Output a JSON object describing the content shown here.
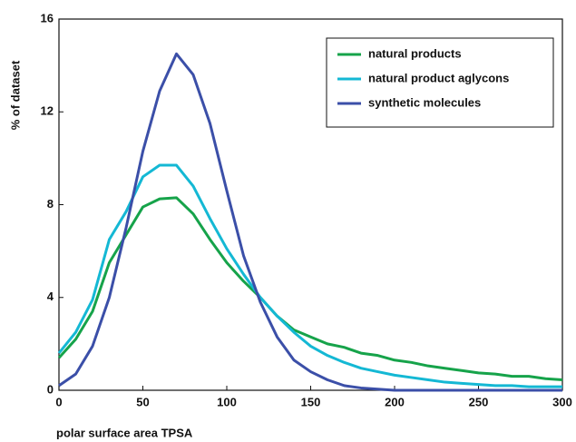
{
  "chart_data": {
    "type": "line",
    "xlabel": "polar surface area TPSA",
    "ylabel": "% of dataset",
    "x": [
      0,
      10,
      20,
      30,
      40,
      50,
      60,
      70,
      80,
      90,
      100,
      110,
      120,
      130,
      140,
      150,
      160,
      170,
      180,
      190,
      200,
      210,
      220,
      230,
      240,
      250,
      260,
      270,
      280,
      290,
      300
    ],
    "series": [
      {
        "name": "natural products",
        "color": "#16a34a",
        "values": [
          1.4,
          2.2,
          3.4,
          5.5,
          6.7,
          7.9,
          8.25,
          8.3,
          7.6,
          6.5,
          5.5,
          4.7,
          4.0,
          3.2,
          2.6,
          2.3,
          2.0,
          1.85,
          1.6,
          1.5,
          1.3,
          1.2,
          1.05,
          0.95,
          0.85,
          0.75,
          0.7,
          0.6,
          0.6,
          0.5,
          0.45
        ]
      },
      {
        "name": "natural product aglycons",
        "color": "#14b8d4",
        "values": [
          1.6,
          2.5,
          3.9,
          6.5,
          7.7,
          9.2,
          9.7,
          9.7,
          8.8,
          7.4,
          6.1,
          5.0,
          4.0,
          3.2,
          2.5,
          1.9,
          1.5,
          1.2,
          0.95,
          0.8,
          0.65,
          0.55,
          0.45,
          0.35,
          0.3,
          0.25,
          0.2,
          0.2,
          0.15,
          0.15,
          0.15
        ]
      },
      {
        "name": "synthetic molecules",
        "color": "#3b4fa8",
        "values": [
          0.2,
          0.7,
          1.9,
          4.0,
          7.0,
          10.3,
          12.9,
          14.5,
          13.6,
          11.5,
          8.6,
          5.8,
          3.8,
          2.3,
          1.3,
          0.8,
          0.45,
          0.2,
          0.1,
          0.05,
          0,
          0,
          0,
          0,
          0,
          0,
          0,
          0,
          0,
          0,
          0
        ]
      }
    ],
    "xlim": [
      0,
      300
    ],
    "xticks": [
      0,
      50,
      100,
      150,
      200,
      250,
      300
    ],
    "ylim": [
      0,
      16
    ],
    "yticks": [
      0,
      4,
      8,
      12,
      16
    ],
    "legend": "upper right"
  }
}
